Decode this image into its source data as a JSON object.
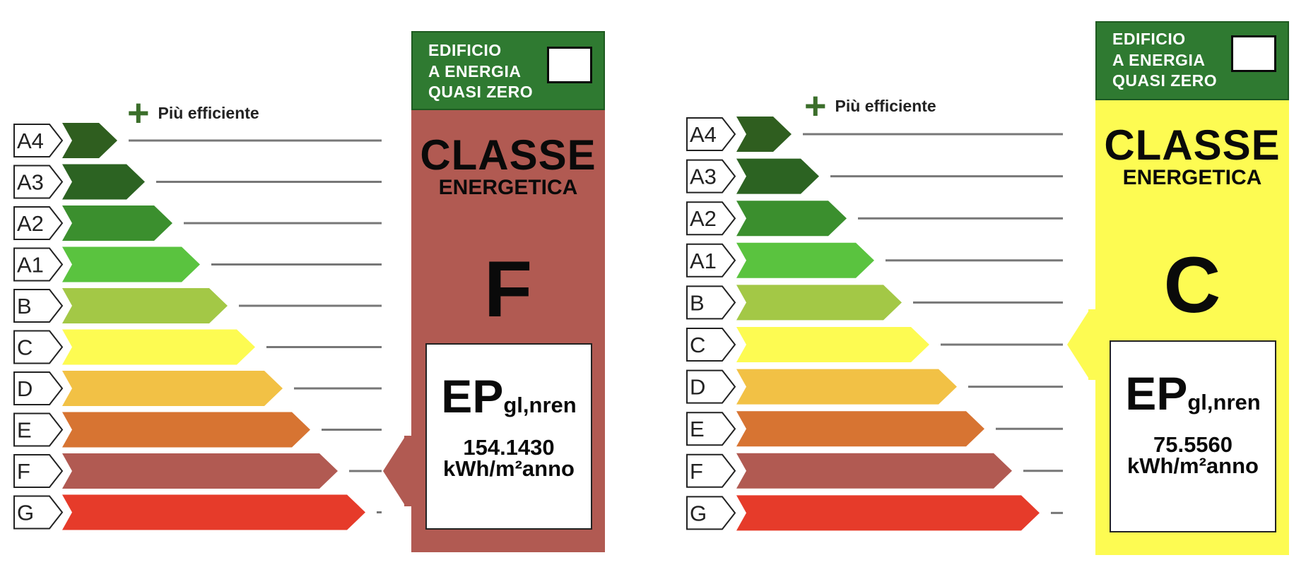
{
  "more_efficient_label": "Più efficiente",
  "nzeb_label_lines": [
    "EDIFICIO",
    "A ENERGIA",
    "QUASI ZERO"
  ],
  "classe_line1": "CLASSE",
  "classe_line2": "ENERGETICA",
  "ep_main": "EP",
  "ep_sub": "gl,nren",
  "classes": [
    {
      "label": "A4",
      "color": "#2f5e1f"
    },
    {
      "label": "A3",
      "color": "#2c6322"
    },
    {
      "label": "A2",
      "color": "#3b8f2e"
    },
    {
      "label": "A1",
      "color": "#5ac33f"
    },
    {
      "label": "B",
      "color": "#a3c846"
    },
    {
      "label": "C",
      "color": "#fdfb52"
    },
    {
      "label": "D",
      "color": "#f2c145"
    },
    {
      "label": "E",
      "color": "#d77432"
    },
    {
      "label": "F",
      "color": "#b15a52"
    },
    {
      "label": "G",
      "color": "#e63b2a"
    }
  ],
  "labels": [
    {
      "energy_class": "F",
      "card_color": "#b15a52",
      "ep_value": "154.1430",
      "unit": "kWh/m²anno"
    },
    {
      "energy_class": "C",
      "card_color": "#fdfb52",
      "ep_value": "75.5560",
      "unit": "kWh/m²anno"
    }
  ]
}
